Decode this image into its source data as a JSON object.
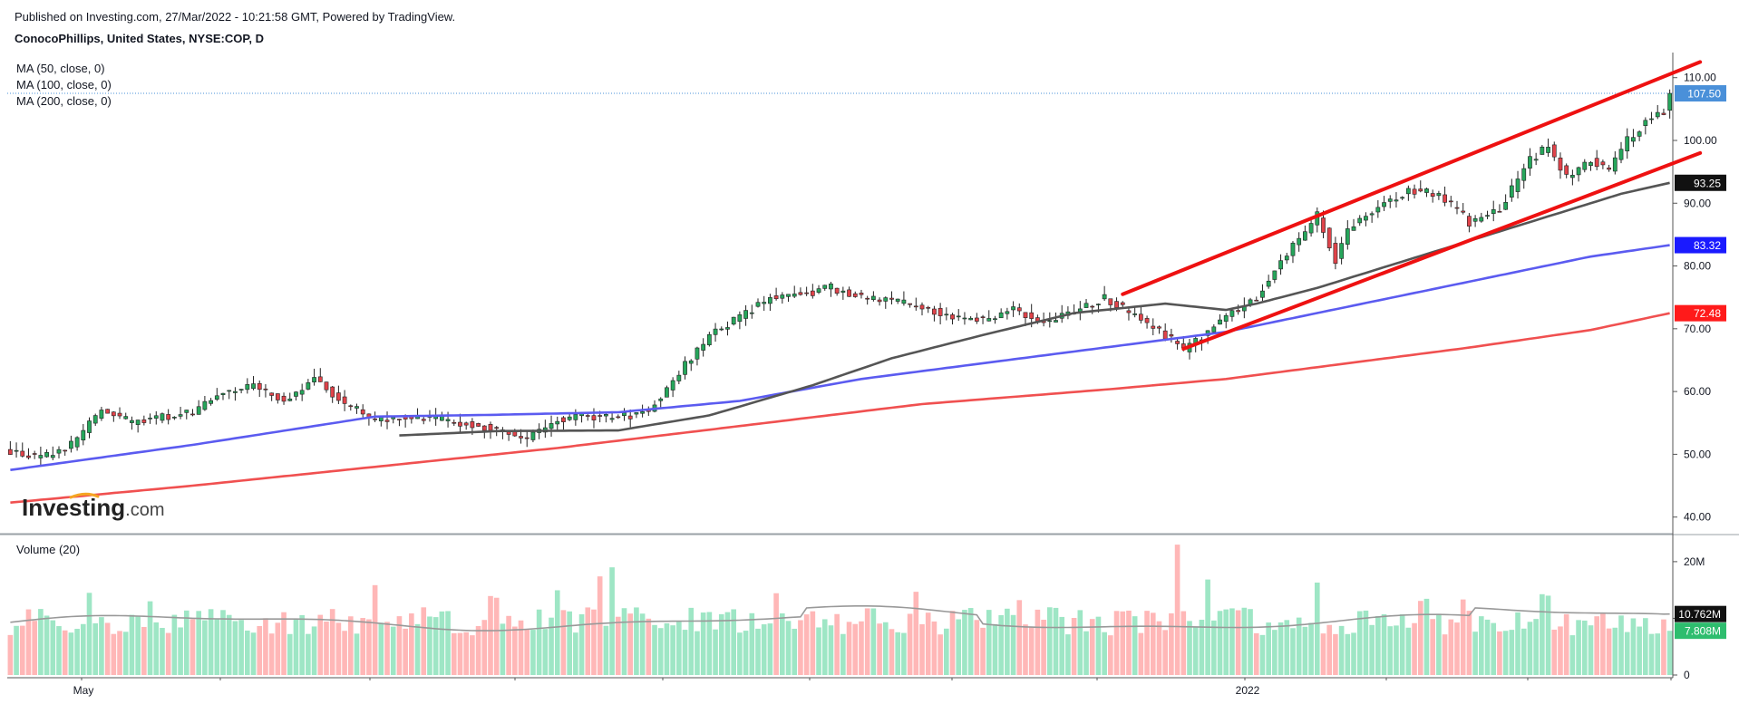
{
  "header": {
    "published": "Published on Investing.com, 27/Mar/2022 - 10:21:58 GMT, Powered by TradingView.",
    "symbol": "ConocoPhillips, United States, NYSE:COP, D"
  },
  "indicators": [
    "MA (50, close, 0)",
    "MA (100, close, 0)",
    "MA (200, close, 0)"
  ],
  "volume_label": "Volume (20)",
  "watermark": {
    "brand": "Investing",
    "suffix": ".com"
  },
  "colors": {
    "up": "#26a65b",
    "down": "#e0434a",
    "up_volume": "#9ee6c5",
    "down_volume": "#ffb7b7",
    "ma50": "#555555",
    "ma100": "#5b5bf0",
    "ma200": "#f05050",
    "channel": "#ee1111",
    "price_badge": "#4a90d9",
    "ma50_badge": "#111111",
    "ma100_badge": "#1a1aff",
    "ma200_badge": "#ff1a1a",
    "vol_avg_badge": "#111111",
    "vol_last_badge": "#2ebd6e"
  },
  "chart_data": {
    "type": "candlestick",
    "price_axis": {
      "ticks": [
        "110.00",
        "100.00",
        "90.00",
        "80.00",
        "70.00",
        "60.00",
        "50.00",
        "40.00"
      ],
      "range": [
        37.5,
        114
      ]
    },
    "volume_axis": {
      "ticks": [
        "20M",
        "10M",
        "0"
      ],
      "range": [
        0,
        23.5
      ]
    },
    "x_labels": [
      "May",
      "2022"
    ],
    "last_price": "107.50",
    "ma_values": {
      "ma50": "93.25",
      "ma100": "83.32",
      "ma200": "72.48"
    },
    "volume_values": {
      "average": "10.762M",
      "last": "7.808M"
    },
    "price_path": [
      [
        0,
        50.5
      ],
      [
        5,
        49.3
      ],
      [
        10,
        51.5
      ],
      [
        15,
        57
      ],
      [
        20,
        55
      ],
      [
        25,
        56
      ],
      [
        30,
        56.5
      ],
      [
        35,
        60
      ],
      [
        40,
        61
      ],
      [
        45,
        58.5
      ],
      [
        50,
        62
      ],
      [
        55,
        58
      ],
      [
        60,
        55.5
      ],
      [
        65,
        56
      ],
      [
        70,
        55.5
      ],
      [
        75,
        55
      ],
      [
        80,
        54
      ],
      [
        85,
        52.5
      ],
      [
        90,
        55.5
      ],
      [
        95,
        56
      ],
      [
        100,
        55.8
      ],
      [
        105,
        57
      ],
      [
        110,
        63
      ],
      [
        115,
        69
      ],
      [
        120,
        72
      ],
      [
        125,
        75
      ],
      [
        130,
        75.5
      ],
      [
        135,
        76.5
      ],
      [
        140,
        75
      ],
      [
        145,
        74.5
      ],
      [
        150,
        73.5
      ],
      [
        155,
        72
      ],
      [
        160,
        71.5
      ],
      [
        165,
        73
      ],
      [
        170,
        71
      ],
      [
        175,
        72.5
      ],
      [
        180,
        75
      ],
      [
        185,
        72
      ],
      [
        190,
        69
      ],
      [
        193,
        66.5
      ],
      [
        195,
        68
      ],
      [
        200,
        72
      ],
      [
        205,
        75
      ],
      [
        210,
        82
      ],
      [
        215,
        88
      ],
      [
        218,
        81
      ],
      [
        220,
        86
      ],
      [
        225,
        89.5
      ],
      [
        230,
        92
      ],
      [
        235,
        91.5
      ],
      [
        240,
        87
      ],
      [
        245,
        89
      ],
      [
        250,
        97
      ],
      [
        253,
        99
      ],
      [
        256,
        94
      ],
      [
        260,
        97
      ],
      [
        263,
        95
      ],
      [
        266,
        100
      ],
      [
        270,
        104
      ],
      [
        272,
        104.5
      ],
      [
        273,
        107.5
      ]
    ],
    "ma50": {
      "start": 64,
      "path": [
        [
          64,
          53
        ],
        [
          80,
          53.7
        ],
        [
          100,
          53.8
        ],
        [
          115,
          56.2
        ],
        [
          132,
          61
        ],
        [
          145,
          65.3
        ],
        [
          160,
          69
        ],
        [
          175,
          72.5
        ],
        [
          190,
          74
        ],
        [
          200,
          73
        ],
        [
          205,
          74
        ],
        [
          215,
          76.5
        ],
        [
          230,
          81
        ],
        [
          245,
          85.5
        ],
        [
          255,
          88.5
        ],
        [
          265,
          91.5
        ],
        [
          273,
          93.25
        ]
      ]
    },
    "ma100": {
      "start": 0,
      "path": [
        [
          0,
          47.5
        ],
        [
          30,
          51.5
        ],
        [
          60,
          56
        ],
        [
          80,
          56.3
        ],
        [
          100,
          56.7
        ],
        [
          120,
          58.5
        ],
        [
          140,
          62
        ],
        [
          160,
          64.5
        ],
        [
          180,
          67
        ],
        [
          200,
          69.5
        ],
        [
          215,
          72.5
        ],
        [
          230,
          75.5
        ],
        [
          245,
          78.5
        ],
        [
          260,
          81.5
        ],
        [
          273,
          83.32
        ]
      ]
    },
    "ma200": {
      "start": 0,
      "path": [
        [
          0,
          42.3
        ],
        [
          30,
          45
        ],
        [
          60,
          48
        ],
        [
          90,
          51
        ],
        [
          120,
          54.5
        ],
        [
          150,
          58
        ],
        [
          180,
          60.3
        ],
        [
          200,
          62
        ],
        [
          220,
          64.5
        ],
        [
          240,
          67
        ],
        [
          260,
          69.8
        ],
        [
          273,
          72.48
        ]
      ]
    },
    "channel_upper": {
      "from": [
        183,
        75.5
      ],
      "to": [
        278,
        112.5
      ]
    },
    "channel_lower": {
      "from": [
        193,
        66.8
      ],
      "to": [
        278,
        98
      ]
    }
  }
}
